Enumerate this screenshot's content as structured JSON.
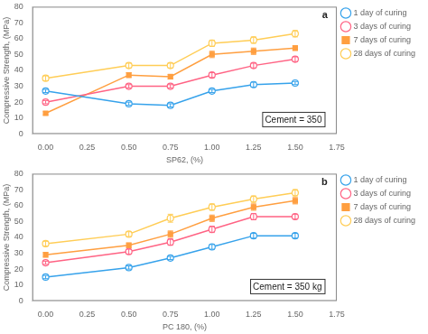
{
  "chart_data": [
    {
      "type": "line",
      "x_label": "SP62, (%)",
      "y_label": "Compressive Strength, (MPa)",
      "annotations": [
        "a",
        "Cement = 350"
      ],
      "x": [
        0,
        0.5,
        0.75,
        1.0,
        1.25,
        1.5
      ],
      "series": [
        {
          "name": "1 day of curing",
          "marker": "open_circle",
          "values": [
            27,
            19,
            18,
            27,
            31,
            32
          ],
          "errors": [
            1.0,
            1.0,
            1.0,
            1.0,
            1.5,
            1.0
          ]
        },
        {
          "name": "3 days of curing",
          "marker": "open_circle",
          "values": [
            20,
            30,
            30,
            37,
            43,
            47
          ],
          "errors": [
            1.0,
            1.0,
            1.0,
            1.5,
            1.5,
            1.5
          ]
        },
        {
          "name": "7 days of curing",
          "marker": "filled_square",
          "values": [
            13,
            37,
            36,
            50,
            52,
            54
          ],
          "errors": [
            1.0,
            1.5,
            1.5,
            2.0,
            2.0,
            1.5
          ]
        },
        {
          "name": "28 days of curing",
          "marker": "open_circle",
          "values": [
            35,
            43,
            43,
            57,
            59,
            63
          ],
          "errors": [
            1.5,
            1.5,
            1.5,
            2.0,
            2.0,
            2.0
          ]
        }
      ],
      "xlim": [
        -0.08,
        1.75
      ],
      "xticks": [
        {
          "value": 0,
          "label": "0.00"
        },
        {
          "value": 0.25,
          "label": "0.25"
        },
        {
          "value": 0.5,
          "label": "0.50"
        },
        {
          "value": 0.75,
          "label": "0.75"
        },
        {
          "value": 1.0,
          "label": "1.00"
        },
        {
          "value": 1.25,
          "label": "1.25"
        },
        {
          "value": 1.5,
          "label": "1.50"
        },
        {
          "value": 1.75,
          "label": "1.75"
        }
      ],
      "ylim": [
        0,
        80
      ],
      "yticks": [
        0,
        10,
        20,
        30,
        40,
        50,
        60,
        70,
        80
      ],
      "grid": false,
      "legend": "right"
    },
    {
      "type": "line",
      "x_label": "PC 180, (%)",
      "y_label": "Compressive Strength, (MPa)",
      "annotations": [
        "b",
        "Cement = 350 kg"
      ],
      "x": [
        0,
        0.5,
        0.75,
        1.0,
        1.25,
        1.5
      ],
      "series": [
        {
          "name": "1 day of curing",
          "marker": "open_circle",
          "values": [
            15,
            21,
            27,
            34,
            41,
            41
          ],
          "errors": [
            1.0,
            1.0,
            1.0,
            1.5,
            1.5,
            1.5
          ]
        },
        {
          "name": "3 days of curing",
          "marker": "open_circle",
          "values": [
            24,
            31,
            37,
            45,
            53,
            53
          ],
          "errors": [
            1.0,
            1.5,
            2.0,
            2.0,
            2.0,
            1.5
          ]
        },
        {
          "name": "7 days of curing",
          "marker": "filled_square",
          "values": [
            29,
            35,
            42,
            52,
            59,
            63
          ],
          "errors": [
            1.5,
            1.5,
            2.0,
            2.0,
            2.0,
            2.0
          ]
        },
        {
          "name": "28 days of curing",
          "marker": "open_circle",
          "values": [
            36,
            42,
            52,
            59,
            64,
            68
          ],
          "errors": [
            1.5,
            1.5,
            2.5,
            2.0,
            2.0,
            2.0
          ]
        }
      ],
      "xlim": [
        -0.08,
        1.75
      ],
      "xticks": [
        {
          "value": 0,
          "label": "0.00"
        },
        {
          "value": 0.25,
          "label": "0.25"
        },
        {
          "value": 0.5,
          "label": "0.50"
        },
        {
          "value": 0.75,
          "label": "0.75"
        },
        {
          "value": 1.0,
          "label": "1.00"
        },
        {
          "value": 1.25,
          "label": "1.25"
        },
        {
          "value": 1.5,
          "label": "1.50"
        },
        {
          "value": 1.75,
          "label": "1.75"
        }
      ],
      "ylim": [
        0,
        80
      ],
      "yticks": [
        0,
        10,
        20,
        30,
        40,
        50,
        60,
        70,
        80
      ],
      "grid": false,
      "legend": "right"
    }
  ]
}
